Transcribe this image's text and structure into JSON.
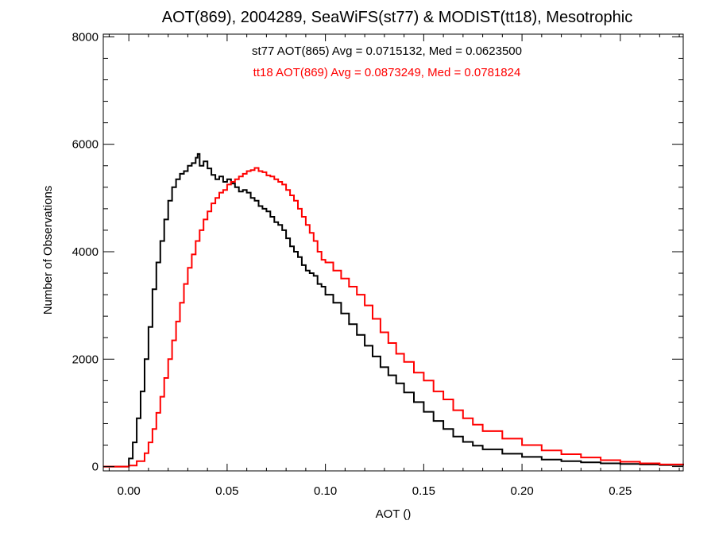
{
  "chart_data": {
    "type": "line",
    "title": "AOT(869), 2004289, SeaWiFS(st77) & MODIST(tt18), Mesotrophic",
    "xlabel": "AOT ()",
    "ylabel": "Number of Observations",
    "xlim": [
      -0.013,
      0.282
    ],
    "ylim": [
      -80,
      8050
    ],
    "x_ticks": [
      0.0,
      0.05,
      0.1,
      0.15,
      0.2,
      0.25
    ],
    "x_tick_labels": [
      "0.00",
      "0.05",
      "0.10",
      "0.15",
      "0.20",
      "0.25"
    ],
    "y_ticks": [
      0,
      2000,
      4000,
      6000,
      8000
    ],
    "y_tick_labels": [
      "0",
      "2000",
      "4000",
      "6000",
      "8000"
    ],
    "grid": false,
    "annotations": [
      {
        "text": "st77 AOT(865) Avg = 0.0715132, Med = 0.0623500",
        "color": "#000000"
      },
      {
        "text": "tt18 AOT(869) Avg = 0.0873249, Med = 0.0781824",
        "color": "#ff0000"
      }
    ],
    "series": [
      {
        "color": "#000000",
        "step": true,
        "x": [
          -0.013,
          0.0,
          0.002,
          0.004,
          0.006,
          0.008,
          0.01,
          0.012,
          0.014,
          0.016,
          0.018,
          0.02,
          0.022,
          0.024,
          0.026,
          0.028,
          0.03,
          0.032,
          0.034,
          0.035,
          0.036,
          0.038,
          0.04,
          0.042,
          0.044,
          0.046,
          0.048,
          0.05,
          0.052,
          0.054,
          0.056,
          0.058,
          0.06,
          0.062,
          0.064,
          0.066,
          0.068,
          0.07,
          0.072,
          0.074,
          0.076,
          0.078,
          0.08,
          0.082,
          0.084,
          0.086,
          0.088,
          0.09,
          0.092,
          0.094,
          0.096,
          0.098,
          0.1,
          0.104,
          0.108,
          0.112,
          0.116,
          0.12,
          0.124,
          0.128,
          0.132,
          0.136,
          0.14,
          0.145,
          0.15,
          0.155,
          0.16,
          0.165,
          0.17,
          0.175,
          0.18,
          0.19,
          0.2,
          0.21,
          0.22,
          0.23,
          0.24,
          0.25,
          0.26,
          0.27,
          0.282
        ],
        "y": [
          0,
          150,
          450,
          900,
          1400,
          2000,
          2600,
          3300,
          3800,
          4200,
          4600,
          4950,
          5200,
          5350,
          5450,
          5500,
          5600,
          5650,
          5750,
          5820,
          5600,
          5680,
          5550,
          5430,
          5350,
          5400,
          5300,
          5350,
          5270,
          5200,
          5120,
          5150,
          5100,
          5000,
          4950,
          4850,
          4800,
          4750,
          4650,
          4550,
          4500,
          4400,
          4250,
          4100,
          4000,
          3900,
          3750,
          3650,
          3600,
          3550,
          3400,
          3350,
          3200,
          3050,
          2850,
          2650,
          2450,
          2250,
          2050,
          1850,
          1700,
          1550,
          1380,
          1200,
          1020,
          850,
          700,
          560,
          460,
          390,
          320,
          240,
          180,
          130,
          100,
          80,
          60,
          50,
          40,
          30,
          20
        ]
      },
      {
        "color": "#ff0000",
        "step": true,
        "x": [
          -0.013,
          0.0,
          0.004,
          0.008,
          0.01,
          0.012,
          0.014,
          0.016,
          0.018,
          0.02,
          0.022,
          0.024,
          0.026,
          0.028,
          0.03,
          0.032,
          0.034,
          0.036,
          0.038,
          0.04,
          0.042,
          0.044,
          0.046,
          0.048,
          0.05,
          0.052,
          0.054,
          0.056,
          0.058,
          0.06,
          0.062,
          0.064,
          0.066,
          0.068,
          0.07,
          0.072,
          0.074,
          0.076,
          0.078,
          0.08,
          0.082,
          0.084,
          0.086,
          0.088,
          0.09,
          0.092,
          0.094,
          0.096,
          0.098,
          0.1,
          0.104,
          0.108,
          0.112,
          0.116,
          0.12,
          0.124,
          0.128,
          0.132,
          0.136,
          0.14,
          0.145,
          0.15,
          0.155,
          0.16,
          0.165,
          0.17,
          0.175,
          0.18,
          0.19,
          0.2,
          0.21,
          0.22,
          0.23,
          0.24,
          0.25,
          0.26,
          0.27,
          0.282
        ],
        "y": [
          0,
          20,
          100,
          250,
          450,
          700,
          1000,
          1300,
          1650,
          2000,
          2350,
          2700,
          3050,
          3400,
          3700,
          3950,
          4200,
          4400,
          4600,
          4750,
          4900,
          5000,
          5100,
          5150,
          5250,
          5300,
          5350,
          5400,
          5450,
          5500,
          5520,
          5560,
          5500,
          5480,
          5420,
          5400,
          5350,
          5300,
          5250,
          5150,
          5050,
          4950,
          4800,
          4650,
          4500,
          4350,
          4200,
          4000,
          3850,
          3800,
          3650,
          3500,
          3350,
          3200,
          3000,
          2750,
          2500,
          2300,
          2100,
          1950,
          1750,
          1600,
          1400,
          1250,
          1050,
          900,
          780,
          660,
          520,
          400,
          300,
          230,
          170,
          120,
          90,
          60,
          40,
          25
        ]
      }
    ]
  }
}
